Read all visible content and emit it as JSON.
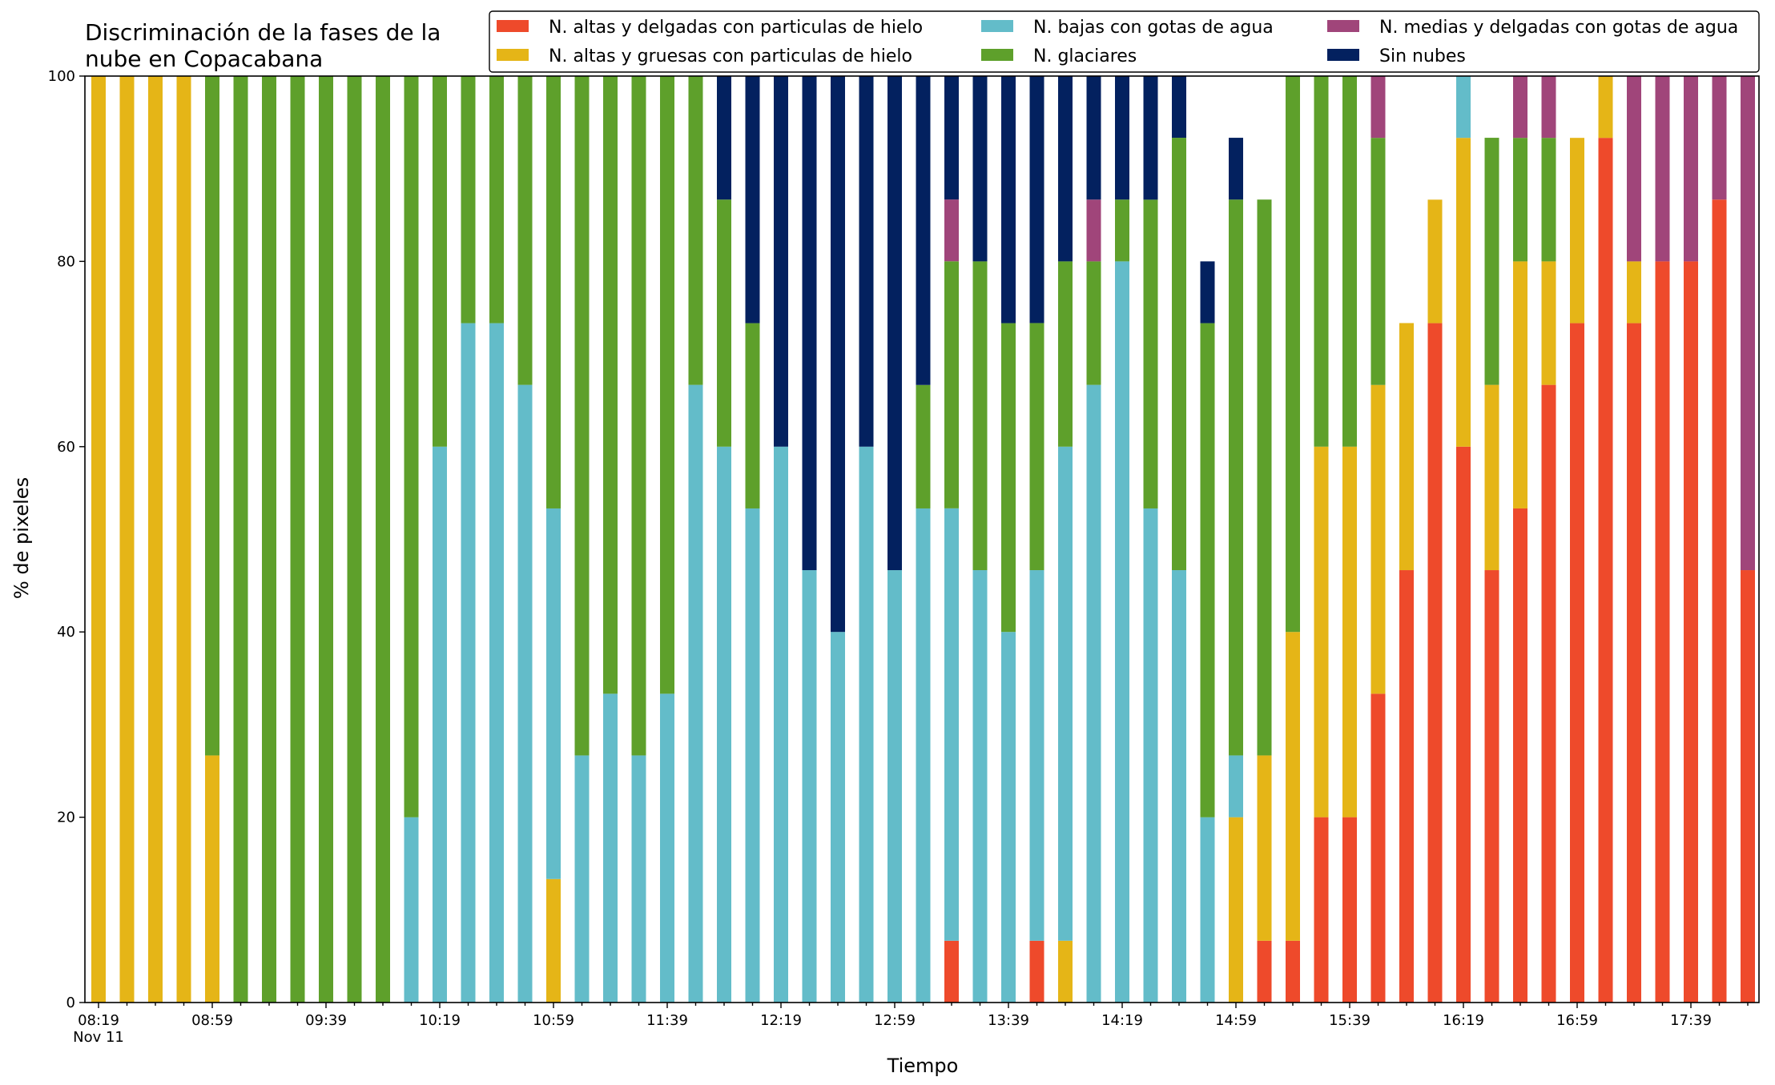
{
  "chart_data": {
    "type": "bar",
    "stacked": true,
    "title": "Discriminación de la fases de la\nnube en Copacabana",
    "xlabel": "Tiempo",
    "ylabel": "% de pixeles",
    "ylim": [
      0,
      100
    ],
    "yticks": [
      0,
      20,
      40,
      60,
      80,
      100
    ],
    "grid": false,
    "legend_position": "top-right",
    "xtick_labels": [
      "08:19",
      "08:59",
      "09:39",
      "10:19",
      "10:59",
      "11:39",
      "12:19",
      "12:59",
      "13:39",
      "14:19",
      "14:59",
      "15:39",
      "16:19",
      "16:59",
      "17:39"
    ],
    "xtick_sublabel": "Nov 11",
    "series": [
      {
        "name": "N. altas y delgadas con particulas de hielo",
        "color": "#ee4a2b",
        "values": [
          0,
          0,
          0,
          0,
          0,
          0,
          0,
          0,
          0,
          0,
          0,
          0,
          0,
          0,
          0,
          0,
          0,
          0,
          0,
          0,
          0,
          0,
          0,
          0,
          0,
          0,
          0,
          0,
          0,
          0,
          6.67,
          0,
          0,
          6.67,
          0,
          0,
          0,
          0,
          0,
          0,
          0,
          6.67,
          6.67,
          20,
          20,
          33.33,
          46.67,
          73.33,
          60,
          46.67,
          53.33,
          66.67,
          73.33,
          93.33,
          73.33,
          80,
          80,
          86.67,
          46.67
        ]
      },
      {
        "name": "N. altas y gruesas con particulas de hielo",
        "color": "#e5b517",
        "values": [
          100,
          100,
          100,
          100,
          26.67,
          0,
          0,
          0,
          0,
          0,
          0,
          0,
          0,
          0,
          0,
          0,
          13.33,
          0,
          0,
          0,
          0,
          0,
          0,
          0,
          0,
          0,
          0,
          0,
          0,
          0,
          0,
          0,
          0,
          0,
          6.67,
          0,
          0,
          0,
          0,
          0,
          20,
          20,
          33.33,
          40,
          40,
          33.33,
          26.67,
          13.33,
          33.33,
          20,
          26.67,
          13.33,
          20,
          6.67,
          6.67,
          0,
          0,
          0,
          0
        ]
      },
      {
        "name": "N. bajas con gotas de agua",
        "color": "#63bcc9",
        "values": [
          0,
          0,
          0,
          0,
          0,
          0,
          0,
          0,
          0,
          0,
          0,
          20,
          60,
          73.33,
          73.33,
          66.67,
          40,
          26.67,
          33.33,
          26.67,
          33.33,
          66.67,
          60,
          53.33,
          60,
          46.67,
          40,
          60,
          46.67,
          53.33,
          46.67,
          46.67,
          40,
          40,
          53.33,
          66.67,
          80,
          53.33,
          46.67,
          20,
          6.67,
          0,
          0,
          0,
          0,
          0,
          0,
          0,
          6.67,
          0,
          0,
          0,
          0,
          0,
          0,
          0,
          0,
          0,
          0
        ]
      },
      {
        "name": "N. glaciares",
        "color": "#5ea02b",
        "values": [
          0,
          0,
          0,
          0,
          73.33,
          100,
          100,
          100,
          100,
          100,
          100,
          80,
          40,
          26.67,
          26.67,
          33.33,
          46.67,
          73.33,
          66.67,
          73.33,
          66.67,
          33.33,
          26.67,
          20,
          0,
          0,
          0,
          0,
          0,
          13.33,
          26.67,
          33.33,
          33.33,
          26.67,
          20,
          13.33,
          6.67,
          33.33,
          46.67,
          53.33,
          60,
          60,
          60,
          40,
          40,
          26.67,
          0,
          0,
          0,
          26.67,
          13.33,
          13.33,
          0,
          0,
          0,
          0,
          0,
          0,
          0
        ]
      },
      {
        "name": "N. medias y delgadas con gotas de agua",
        "color": "#a0457a",
        "values": [
          0,
          0,
          0,
          0,
          0,
          0,
          0,
          0,
          0,
          0,
          0,
          0,
          0,
          0,
          0,
          0,
          0,
          0,
          0,
          0,
          0,
          0,
          0,
          0,
          0,
          0,
          0,
          0,
          0,
          0,
          6.67,
          0,
          0,
          0,
          0,
          6.67,
          0,
          0,
          0,
          0,
          0,
          0,
          0,
          0,
          0,
          6.67,
          0,
          0,
          0,
          0,
          6.67,
          6.67,
          0,
          0,
          20,
          20,
          20,
          13.33,
          53.33
        ]
      },
      {
        "name": "Sin nubes",
        "color": "#03215f",
        "values": [
          0,
          0,
          0,
          0,
          0,
          0,
          0,
          0,
          0,
          0,
          0,
          0,
          0,
          0,
          0,
          0,
          0,
          0,
          0,
          0,
          0,
          0,
          13.33,
          26.67,
          40,
          53.33,
          60,
          40,
          53.33,
          33.33,
          13.33,
          20,
          26.67,
          26.67,
          20,
          13.33,
          13.33,
          13.33,
          6.67,
          6.67,
          6.67,
          0,
          0,
          0,
          0,
          0,
          0,
          0,
          0,
          0,
          0,
          0,
          0,
          0,
          0,
          0,
          0,
          0,
          0
        ]
      }
    ]
  }
}
